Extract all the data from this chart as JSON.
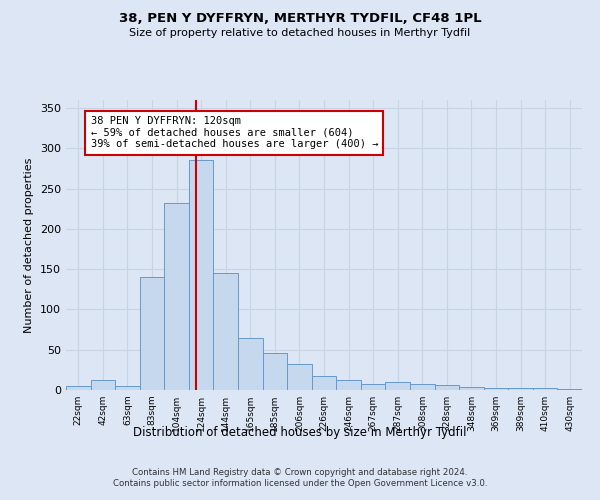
{
  "title": "38, PEN Y DYFFRYN, MERTHYR TYDFIL, CF48 1PL",
  "subtitle": "Size of property relative to detached houses in Merthyr Tydfil",
  "xlabel": "Distribution of detached houses by size in Merthyr Tydfil",
  "ylabel": "Number of detached properties",
  "bar_labels": [
    "22sqm",
    "42sqm",
    "63sqm",
    "83sqm",
    "104sqm",
    "124sqm",
    "144sqm",
    "165sqm",
    "185sqm",
    "206sqm",
    "226sqm",
    "246sqm",
    "267sqm",
    "287sqm",
    "308sqm",
    "328sqm",
    "348sqm",
    "369sqm",
    "389sqm",
    "410sqm",
    "430sqm"
  ],
  "bar_values": [
    5,
    12,
    5,
    140,
    232,
    285,
    145,
    65,
    46,
    32,
    17,
    12,
    8,
    10,
    8,
    6,
    4,
    3,
    3,
    2,
    1
  ],
  "bar_color": "#c5d8ee",
  "bar_edge_color": "#6699cc",
  "vline_color": "#cc0000",
  "vline_x_index": 4.78,
  "annotation_line1": "38 PEN Y DYFFRYN: 120sqm",
  "annotation_line2": "← 59% of detached houses are smaller (604)",
  "annotation_line3": "39% of semi-detached houses are larger (400) →",
  "annotation_box_facecolor": "#ffffff",
  "annotation_box_edgecolor": "#cc0000",
  "grid_color": "#c8d4e4",
  "background_color": "#dce6f5",
  "plot_bg_color": "#dce6f5",
  "footer_text": "Contains HM Land Registry data © Crown copyright and database right 2024.\nContains public sector information licensed under the Open Government Licence v3.0.",
  "ylim": [
    0,
    360
  ],
  "yticks": [
    0,
    50,
    100,
    150,
    200,
    250,
    300,
    350
  ]
}
